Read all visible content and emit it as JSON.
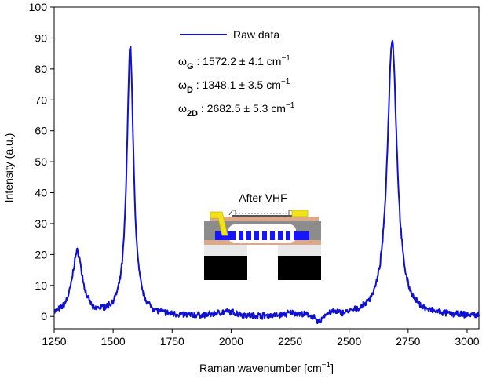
{
  "chart_data": {
    "type": "line",
    "xlabel": "Raman wavenumber [cm",
    "xlabel_unit_exp": "−1",
    "xlabel_close": "]",
    "ylabel": "Intensity (a.u.)",
    "xlim": [
      1250,
      3050
    ],
    "ylim": [
      -4,
      100
    ],
    "xticks": [
      1250,
      1500,
      1750,
      2000,
      2250,
      2500,
      2750,
      3000
    ],
    "yticks": [
      0,
      10,
      20,
      30,
      40,
      50,
      60,
      70,
      80,
      90,
      100
    ],
    "series": [
      {
        "name": "Raw data",
        "color": "#1010d0",
        "baseline": 0,
        "peaks": [
          {
            "center": 1348.1,
            "height": 20.5,
            "width": 26
          },
          {
            "center": 1572.2,
            "height": 87.0,
            "width": 17
          },
          {
            "center": 2682.5,
            "height": 89.5,
            "width": 25
          }
        ],
        "background_bumps": [
          {
            "center": 1980,
            "height": 1.2,
            "width": 60
          },
          {
            "center": 2260,
            "height": 0.8,
            "width": 40
          },
          {
            "center": 2430,
            "height": 0.6,
            "width": 25
          }
        ],
        "dips": [
          {
            "center": 2370,
            "depth": 2.5,
            "width": 20
          },
          {
            "center": 1420,
            "depth": 1.0,
            "width": 12
          }
        ]
      }
    ],
    "legend": {
      "label": "Raw data",
      "position": "top-center"
    },
    "annotations": [
      {
        "symbol": "ω",
        "sub": "G",
        "text": " : 1572.2 ± 4.1 cm",
        "sup": "−1"
      },
      {
        "symbol": "ω",
        "sub": "D",
        "text": " : 1348.1 ± 3.5 cm",
        "sup": "−1"
      },
      {
        "symbol": "ω",
        "sub": "2D",
        "text": " : 2682.5 ± 5.3 cm",
        "sup": "−1"
      }
    ],
    "inset": {
      "title": "After VHF"
    }
  }
}
